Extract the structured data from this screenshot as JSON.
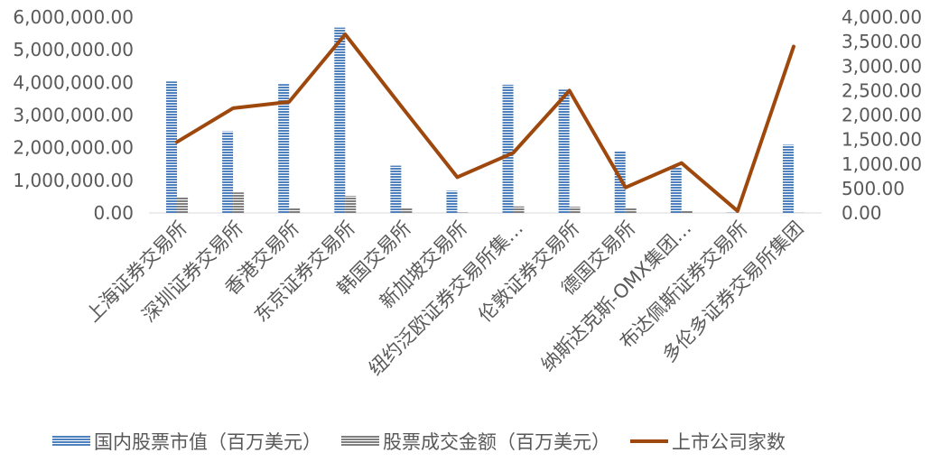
{
  "chart_data": {
    "type": "bar",
    "categories": [
      "上海证券交易所",
      "深圳证券交易所",
      "香港交易所",
      "东京证券交易所",
      "韩国交易所",
      "新加坡交易所",
      "纽约泛欧证券交易所集…",
      "伦敦证券交易所",
      "德国交易所",
      "纳斯达克斯-OMX集团…",
      "布达佩斯证券交易所",
      "多伦多证券交易所集团"
    ],
    "series": [
      {
        "name": "国内股票市值（百万美元）",
        "type": "bar",
        "axis": "left",
        "color": "#4e81bd",
        "values": [
          4030000,
          2500000,
          3950000,
          5680000,
          1450000,
          680000,
          3930000,
          3780000,
          1880000,
          1380000,
          10000,
          2090000
        ]
      },
      {
        "name": "股票成交金额（百万美元）",
        "type": "bar",
        "axis": "left",
        "color": "#8c8c8c",
        "values": [
          490000,
          630000,
          150000,
          520000,
          150000,
          15000,
          200000,
          190000,
          140000,
          70000,
          1000,
          5000
        ]
      },
      {
        "name": "上市公司家数",
        "type": "line",
        "axis": "right",
        "color": "#9e480e",
        "values": [
          1450,
          2140,
          2270,
          3650,
          2180,
          730,
          1230,
          2500,
          520,
          1020,
          40,
          3400
        ]
      }
    ],
    "left_axis": {
      "ticks": [
        "0.00",
        "1,000,000.00",
        "2,000,000.00",
        "3,000,000.00",
        "4,000,000.00",
        "5,000,000.00",
        "6,000,000.00"
      ],
      "ylim": [
        0,
        6000000
      ]
    },
    "right_axis": {
      "ticks": [
        "0.00",
        "500.00",
        "1,000.00",
        "1,500.00",
        "2,000.00",
        "2,500.00",
        "3,000.00",
        "3,500.00",
        "4,000.00"
      ],
      "ylim": [
        0,
        4000
      ]
    },
    "legend_position": "bottom",
    "grid": false
  }
}
